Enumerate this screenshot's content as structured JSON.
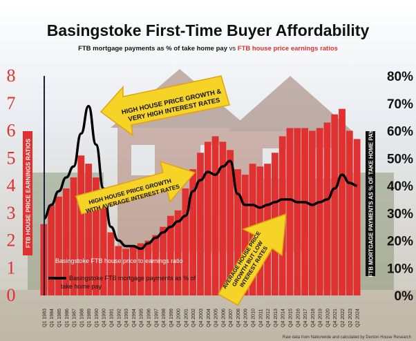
{
  "chart_data": {
    "type": "bar+line",
    "title": "Basingstoke First-Time Buyer Affordability",
    "subtitle_part1": "FTB mortgage payments as % of take home pay",
    "subtitle_vs": " vs ",
    "subtitle_part2": "FTB house price earnings ratios",
    "y_left_label": "FTB HOUSE PRICE EARNINGS RATIOS",
    "y_left_ticks": [
      "0",
      "1",
      "2",
      "3",
      "4",
      "5",
      "6",
      "7",
      "8"
    ],
    "y_left_range": [
      0,
      8
    ],
    "y_right_label": "FTB MORTGAGE PAYMENTS AS % OF TAKE HOME PAY",
    "y_right_ticks": [
      "0%",
      "10%",
      "20%",
      "30%",
      "40%",
      "50%",
      "60%",
      "70%",
      "80%"
    ],
    "y_right_range": [
      0,
      80
    ],
    "x_ticks": [
      "Q1 1983",
      "Q1 1984",
      "Q1 1985",
      "Q1 1986",
      "Q1 1987",
      "Q1 1988",
      "Q1 1989",
      "Q1 1990",
      "Q4 1990",
      "Q4 1991",
      "Q4 1992",
      "Q4 1993",
      "Q4 1994",
      "Q4 1995",
      "Q4 1996",
      "Q4 1997",
      "Q4 1998",
      "Q4 1999",
      "Q4 2000",
      "Q4 2001",
      "Q4 2002",
      "Q4 2003",
      "Q4 2004",
      "Q4 2005",
      "Q4 2006",
      "Q4 2007",
      "Q4 2008",
      "Q4 2009",
      "Q4 2010",
      "Q4 2011",
      "Q4 2012",
      "Q4 2013",
      "Q4 2014",
      "Q4 2015",
      "Q4 2016",
      "Q4 2017",
      "Q4 2018",
      "Q4 2019",
      "Q4 2020",
      "Q4 2021",
      "Q2 2022",
      "Q2 2023",
      "Q2 2024"
    ],
    "legend": [
      {
        "label": "Basingstoke FTB house price to earnings ratio",
        "color": "#e03030"
      },
      {
        "label": "Basingstoke FTB mortgage payments as % of take home pay",
        "color": "#000000"
      }
    ],
    "series": [
      {
        "name": "Basingstoke FTB house price to earnings ratio",
        "axis": "left",
        "values": [
          2.6,
          3.3,
          3.6,
          3.9,
          4.3,
          5.1,
          4.8,
          4.3,
          3.4,
          2.3,
          1.8,
          1.7,
          1.8,
          1.9,
          2.0,
          2.2,
          2.5,
          2.9,
          3.1,
          3.9,
          4.6,
          5.2,
          5.6,
          5.8,
          5.6,
          5.3,
          4.6,
          4.4,
          4.8,
          4.7,
          4.8,
          5.2,
          5.8,
          6.1,
          6.1,
          6.1,
          6.0,
          6.1,
          6.3,
          6.6,
          6.8,
          6.0,
          5.7
        ]
      },
      {
        "name": "Basingstoke FTB mortgage payments as % of take home pay",
        "axis": "right",
        "values": [
          28,
          33,
          38,
          43,
          47,
          59,
          69,
          55,
          39,
          25,
          20,
          18,
          18,
          17,
          19,
          21,
          23,
          25,
          27,
          29,
          38,
          42,
          45,
          44,
          47,
          49,
          37,
          33,
          33,
          32,
          33,
          34,
          35,
          35,
          34,
          34,
          33,
          34,
          35,
          39,
          44,
          41,
          40
        ]
      }
    ],
    "annotations": [
      {
        "lines": [
          "HIGH HOUSE PRICE GROWTH &",
          "VERY HIGH INTEREST RATES"
        ],
        "direction": "left"
      },
      {
        "lines": [
          "HIGH HOUSE PRICE GROWTH",
          "WITH AVERAGE INTEREST RATES"
        ],
        "direction": "right"
      },
      {
        "lines": [
          "AVERAGE HOUSE PRICE",
          "GROWTH BUT LOW",
          "INTEREST RATES"
        ],
        "direction": "up-right"
      }
    ],
    "source_note": "Raw data from Nationwide and calculated by Denton House Research"
  },
  "colors": {
    "bar": "#e03030",
    "line": "#000000",
    "left_axis_text": "#e03030",
    "subtitle_red": "#e03030",
    "arrow_fill": "#f5d327",
    "arrow_stroke": "#e2a20e",
    "left_label_bg": "#e03030",
    "right_label_bg": "#111111"
  }
}
